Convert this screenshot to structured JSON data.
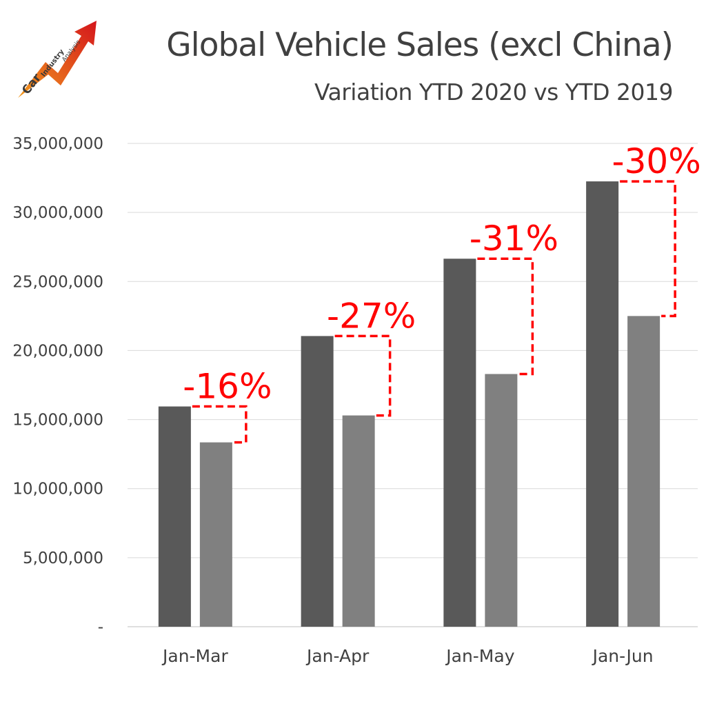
{
  "logo": {
    "words": [
      "Car",
      "Industry",
      "Analysis"
    ],
    "icon": "rising-arrow-icon"
  },
  "chart_data": {
    "type": "bar",
    "title": "Global Vehicle Sales (excl China)",
    "subtitle": "Variation YTD 2020 vs YTD 2019",
    "categories": [
      "Jan-Mar",
      "Jan-Apr",
      "Jan-May",
      "Jan-Jun"
    ],
    "series": [
      {
        "values": [
          15950000,
          21050000,
          26650000,
          32250000
        ],
        "color": "#595959"
      },
      {
        "values": [
          13350000,
          15300000,
          18300000,
          22500000
        ],
        "color": "#808080"
      }
    ],
    "variations": [
      "-16%",
      "-27%",
      "-31%",
      "-30%"
    ],
    "variation_color": "#ff0000",
    "ylim": [
      0,
      35000000
    ],
    "yticks": [
      0,
      5000000,
      10000000,
      15000000,
      20000000,
      25000000,
      30000000,
      35000000
    ],
    "ytick_labels": [
      "-",
      "5,000,000",
      "10,000,000",
      "15,000,000",
      "20,000,000",
      "25,000,000",
      "30,000,000",
      "35,000,000"
    ],
    "grid": true,
    "legend": "none",
    "xlabel": "",
    "ylabel": ""
  }
}
